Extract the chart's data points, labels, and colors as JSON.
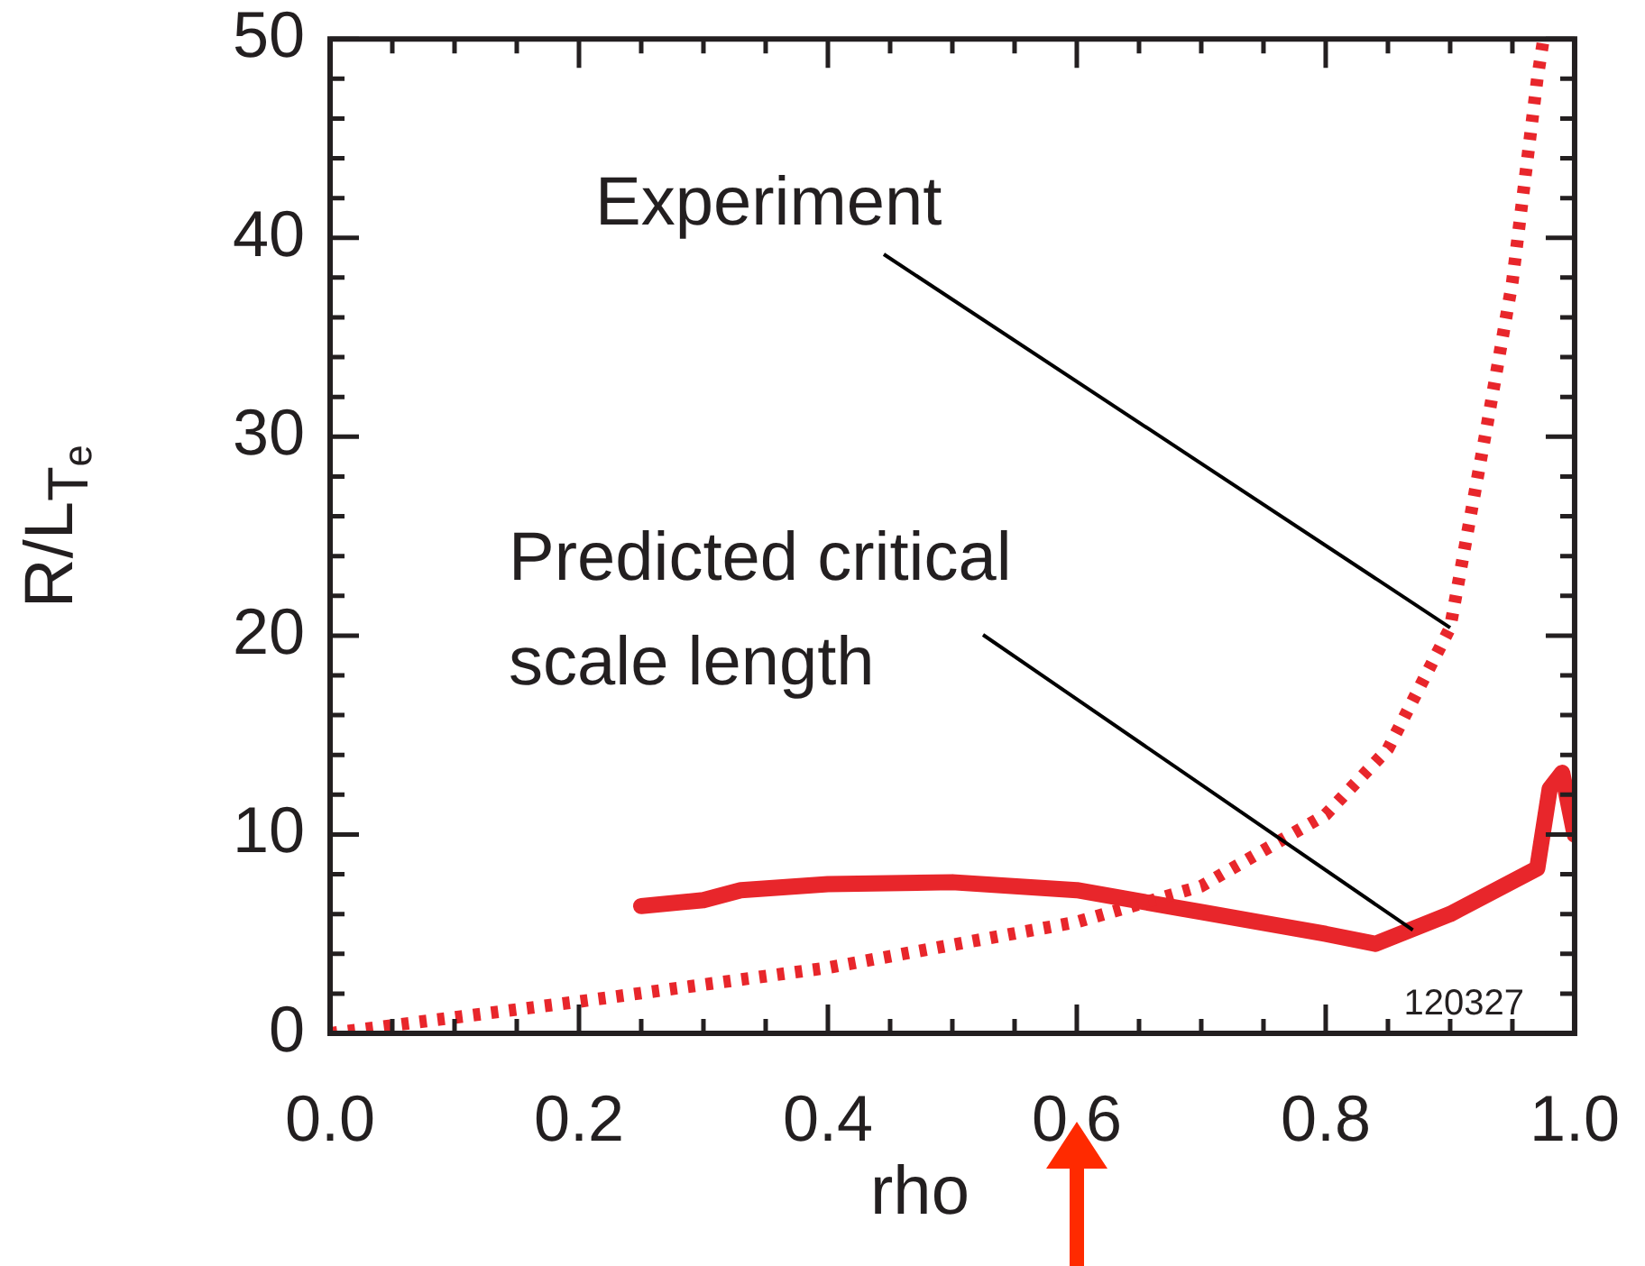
{
  "chart_data": {
    "type": "line",
    "xlabel": "rho",
    "ylabel": "R/L$_{Tₑ}$",
    "xlim": [
      0,
      1
    ],
    "ylim": [
      0,
      50
    ],
    "xticks": [
      {
        "value": 0,
        "label": "0.0"
      },
      {
        "value": 0.05,
        "label": null
      },
      {
        "value": 0.1,
        "label": null
      },
      {
        "value": 0.15,
        "label": null
      },
      {
        "value": 0.2,
        "label": "0.2"
      },
      {
        "value": 0.25,
        "label": null
      },
      {
        "value": 0.3,
        "label": null
      },
      {
        "value": 0.35,
        "label": null
      },
      {
        "value": 0.4,
        "label": "0.4"
      },
      {
        "value": 0.45,
        "label": null
      },
      {
        "value": 0.5,
        "label": null
      },
      {
        "value": 0.55,
        "label": null
      },
      {
        "value": 0.6,
        "label": "0.6"
      },
      {
        "value": 0.65,
        "label": null
      },
      {
        "value": 0.7,
        "label": null
      },
      {
        "value": 0.75,
        "label": null
      },
      {
        "value": 0.8,
        "label": "0.8"
      },
      {
        "value": 0.85,
        "label": null
      },
      {
        "value": 0.9,
        "label": null
      },
      {
        "value": 0.95,
        "label": null
      },
      {
        "value": 1,
        "label": "1.0"
      }
    ],
    "yticks": [
      0,
      {
        "value": 2,
        "label": null
      },
      {
        "value": 4,
        "label": null
      },
      {
        "value": 6,
        "label": null
      },
      {
        "value": 8,
        "label": null
      },
      10,
      {
        "value": 12,
        "label": null
      },
      {
        "value": 14,
        "label": null
      },
      {
        "value": 16,
        "label": null
      },
      {
        "value": 18,
        "label": null
      },
      20,
      {
        "value": 22,
        "label": null
      },
      {
        "value": 24,
        "label": null
      },
      {
        "value": 26,
        "label": null
      },
      {
        "value": 28,
        "label": null
      },
      30,
      {
        "value": 32,
        "label": null
      },
      {
        "value": 34,
        "label": null
      },
      {
        "value": 36,
        "label": null
      },
      {
        "value": 38,
        "label": null
      },
      40,
      {
        "value": 42,
        "label": null
      },
      {
        "value": 44,
        "label": null
      },
      {
        "value": 46,
        "label": null
      },
      {
        "value": 48,
        "label": null
      },
      50
    ],
    "grid": false,
    "legend": false,
    "marker": "none",
    "series": [
      {
        "color": "#e8262b",
        "line_style": "dotted",
        "x": [
          0,
          0.2,
          0.4,
          0.6,
          0.7,
          0.8,
          0.85,
          0.9,
          0.93,
          0.95,
          0.97,
          0.975
        ],
        "values": [
          0,
          1.6,
          3.3,
          5.6,
          7.4,
          11,
          14.3,
          20.4,
          30.7,
          37.8,
          48,
          50
        ]
      },
      {
        "color": "#e8262b",
        "line_style": "solid",
        "x": [
          0.25,
          0.3,
          0.33,
          0.4,
          0.5,
          0.6,
          0.7,
          0.8,
          0.84,
          0.9,
          0.97,
          0.98,
          0.99,
          1
        ],
        "values": [
          6.4,
          6.7,
          7.2,
          7.5,
          7.6,
          7.2,
          6.1,
          5,
          4.5,
          6,
          8.3,
          12.3,
          13.1,
          10
        ]
      }
    ],
    "annotations": [
      {
        "text": "Experiment",
        "x": 0.9,
        "y": 20.4
      },
      {
        "text": "Predicted critical scale length",
        "x": 0.87,
        "y": 5.2
      },
      "120327"
    ]
  }
}
